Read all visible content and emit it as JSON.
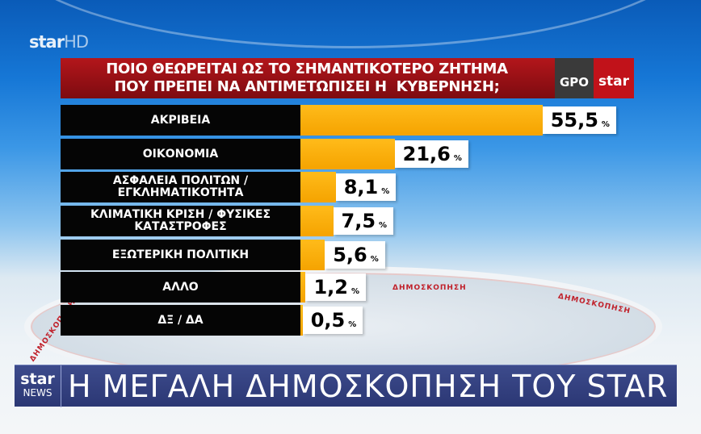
{
  "channel_logo": {
    "name": "star",
    "suffix": "HD"
  },
  "header": {
    "question_line1": "ΠΟΙΟ ΘΕΩΡΕΙΤΑΙ ΩΣ ΤΟ ΣΗΜΑΝΤΙΚΟΤΕΡΟ ΖΗΤΗΜΑ",
    "question_line2": "ΠΟΥ ΠΡΕΠΕΙ ΝΑ ΑΝΤΙΜΕΤΩΠΙΣΕΙ Η  ΚΥΒΕΡΝΗΣΗ;",
    "pollster": "GPO",
    "broadcaster": "star"
  },
  "colors": {
    "header": "#9e1217",
    "bar": "#ffb000",
    "label_bg": "#050505",
    "ticker": "#34407e"
  },
  "chart_data": {
    "type": "bar",
    "orientation": "horizontal",
    "title": "ΠΟΙΟ ΘΕΩΡΕΙΤΑΙ ΩΣ ΤΟ ΣΗΜΑΝΤΙΚΟΤΕΡΟ ΖΗΤΗΜΑ ΠΟΥ ΠΡΕΠΕΙ ΝΑ ΑΝΤΙΜΕΤΩΠΙΣΕΙ Η  ΚΥΒΕΡΝΗΣΗ;",
    "unit": "%",
    "categories": [
      "ΑΚΡΙΒΕΙΑ",
      "ΟΙΚΟΝΟΜΙΑ",
      "ΑΣΦΑΛΕΙΑ ΠΟΛΙΤΩΝ / ΕΓΚΛΗΜΑΤΙΚΟΤΗΤΑ",
      "ΚΛΙΜΑΤΙΚΗ ΚΡΙΣΗ / ΦΥΣΙΚΕΣ ΚΑΤΑΣΤΡΟΦΕΣ",
      "ΕΞΩΤΕΡΙΚΗ ΠΟΛΙΤΙΚΗ",
      "ΑΛΛΟ",
      "ΔΞ / ΔΑ"
    ],
    "values": [
      55.5,
      21.6,
      8.1,
      7.5,
      5.6,
      1.2,
      0.5
    ],
    "value_labels": [
      "55,5",
      "21,6",
      "8,1",
      "7,5",
      "5,6",
      "1,2",
      "0,5"
    ]
  },
  "stage_text": [
    "ΔΗΜΟΣΚΟΠΗΣΗ",
    "ΔΗΜΟΣΚΟΠΗΣΗ",
    "ΔΗΜΟΣΚΟΠΗΣΗ"
  ],
  "ticker": {
    "logo_top": "star",
    "logo_bottom": "NEWS",
    "text": "Η ΜΕΓΑΛΗ ΔΗΜΟΣΚΟΠΗΣΗ ΤΟΥ STAR"
  }
}
